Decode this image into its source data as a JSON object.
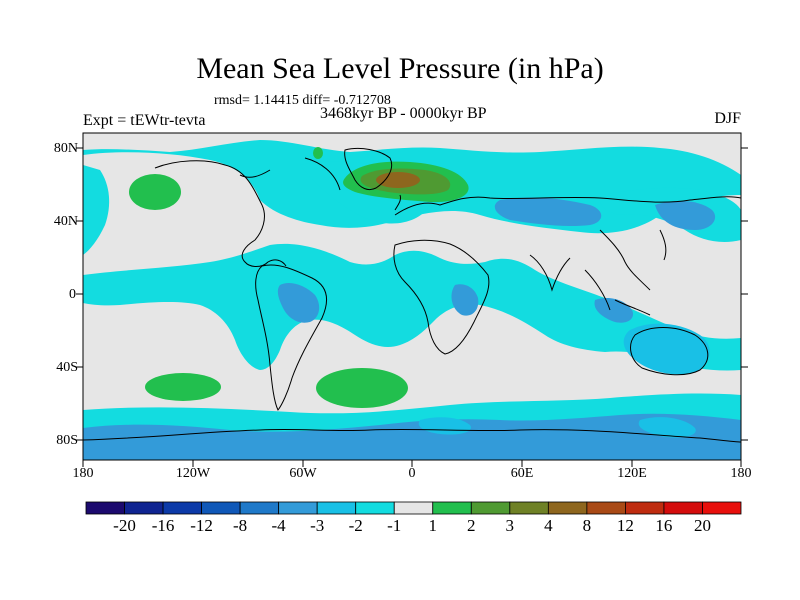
{
  "title": "Mean Sea Level Pressure (in hPa)",
  "stats_text": "rmsd= 1.14415 diff= -0.712708",
  "experiment": "Expt = tEWtr-tevta",
  "period": "3468kyr BP - 0000kyr BP",
  "season": "DJF",
  "lat_labels": [
    "80N",
    "40N",
    "0",
    "40S",
    "80S"
  ],
  "lon_labels": [
    "180",
    "120W",
    "60W",
    "0",
    "60E",
    "120E",
    "180"
  ],
  "colorbar": {
    "labels": [
      "-20",
      "-16",
      "-12",
      "-8",
      "-4",
      "-3",
      "-2",
      "-1",
      "1",
      "2",
      "3",
      "4",
      "8",
      "12",
      "16",
      "20"
    ],
    "colors": [
      "#1c0a6e",
      "#102491",
      "#0c3aa8",
      "#1058b8",
      "#1f79c9",
      "#339bd9",
      "#19c0e6",
      "#13dce0",
      "#e6e6e6",
      "#22bf4e",
      "#4f9a32",
      "#6f8126",
      "#8e661e",
      "#a94a16",
      "#bf2c10",
      "#d40c0c",
      "#e8100c"
    ]
  },
  "map": {
    "background": "#e6e6e6",
    "light_cyan": "#13dce0",
    "mid_cyan": "#19c0e6",
    "blue": "#339bd9",
    "green": "#22bf4e",
    "dark_green": "#4f9a32",
    "brown": "#8e661e"
  }
}
